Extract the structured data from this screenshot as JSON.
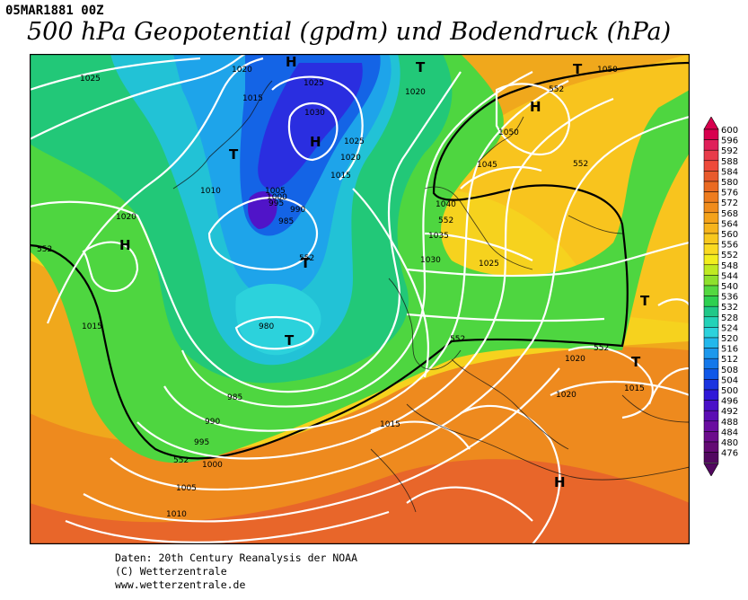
{
  "header": {
    "date_label": "05MAR1881 00Z",
    "title": "500 hPa Geopotential (gpdm) und Bodendruck (hPa)"
  },
  "credits": {
    "line1": "Daten: 20th Century Reanalysis der NOAA",
    "line2": "(C) Wetterzentrale",
    "line3": "www.wetterzentrale.de"
  },
  "colors": {
    "border_contour": "#000000",
    "isobar": "#ffffff",
    "map_frame": "#000000"
  },
  "colorbar": {
    "ticks": [
      "600",
      "596",
      "592",
      "588",
      "584",
      "580",
      "576",
      "572",
      "568",
      "564",
      "560",
      "556",
      "552",
      "548",
      "544",
      "540",
      "536",
      "532",
      "528",
      "524",
      "520",
      "516",
      "512",
      "508",
      "504",
      "500",
      "496",
      "492",
      "488",
      "484",
      "480",
      "476"
    ],
    "colors": [
      "#d8004e",
      "#e0205a",
      "#e83c4a",
      "#ee4a3a",
      "#e85a2c",
      "#ea6a22",
      "#ee7c1e",
      "#f08c1c",
      "#f4a21a",
      "#f6b41c",
      "#f8c81e",
      "#fada22",
      "#f2ee1e",
      "#bfea22",
      "#8ee02c",
      "#54d840",
      "#2ed050",
      "#20c888",
      "#24d2b8",
      "#2cd2dc",
      "#22b8ec",
      "#1c98ec",
      "#1478ea",
      "#1058e8",
      "#1a34e0",
      "#3018d8",
      "#4a10c8",
      "#5c0cb4",
      "#6a0ca0",
      "#6c0c8c",
      "#640a74",
      "#520860"
    ]
  },
  "map": {
    "geopotential_labels": [
      "552",
      "552",
      "552",
      "552",
      "552",
      "552",
      "552",
      "552"
    ],
    "pressure_labels": [
      "1025",
      "1020",
      "1015",
      "1025",
      "1030",
      "1025",
      "1020",
      "1015",
      "1020",
      "1050",
      "1050",
      "1045",
      "1040",
      "1035",
      "1030",
      "1025",
      "1010",
      "1005",
      "1000",
      "995",
      "990",
      "985",
      "1020",
      "1015",
      "980",
      "985",
      "990",
      "995",
      "1000",
      "1005",
      "1010",
      "1015",
      "1015",
      "1020",
      "1020"
    ],
    "centers": [
      "H",
      "H",
      "T",
      "H",
      "T",
      "H",
      "T",
      "H",
      "T",
      "T",
      "T",
      "T",
      "H"
    ]
  }
}
